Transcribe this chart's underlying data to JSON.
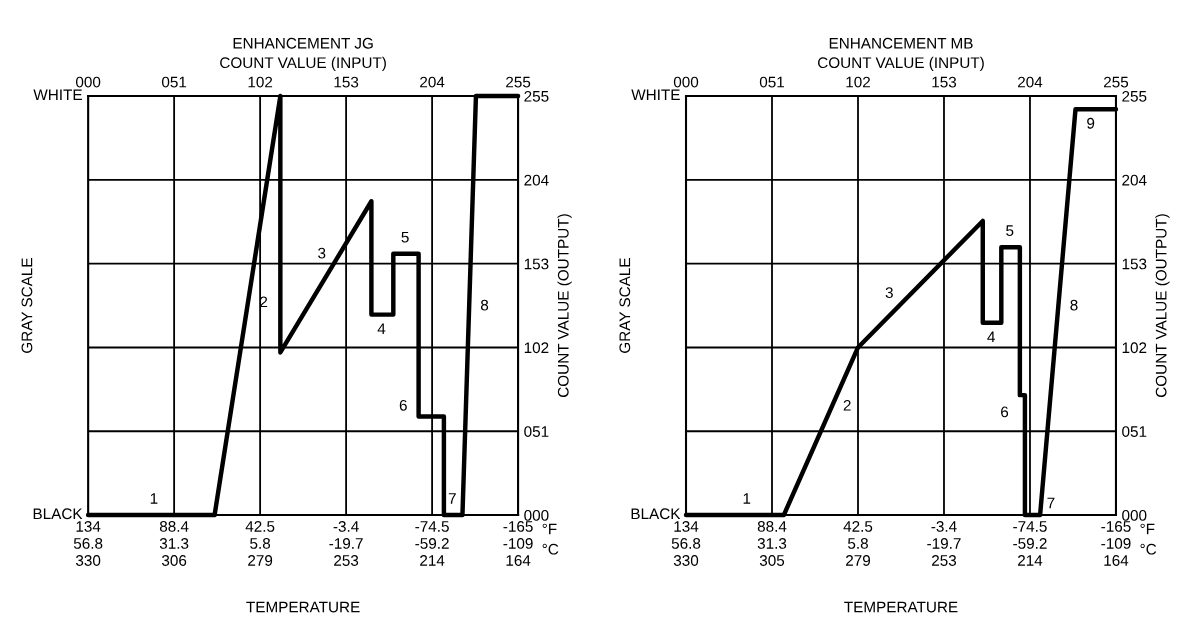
{
  "chart_data": [
    {
      "type": "line",
      "title": "ENHANCEMENT JG",
      "xlabel": "COUNT VALUE (INPUT)",
      "ylabel": "COUNT VALUE (OUTPUT)",
      "xlim": [
        0,
        255
      ],
      "ylim": [
        0,
        255
      ],
      "xticks": [
        {
          "value": 0,
          "label": "000"
        },
        {
          "value": 51,
          "label": "051"
        },
        {
          "value": 102,
          "label": "102"
        },
        {
          "value": 153,
          "label": "153"
        },
        {
          "value": 204,
          "label": "204"
        },
        {
          "value": 255,
          "label": "255"
        }
      ],
      "yticks": [
        {
          "value": 0,
          "label": "000"
        },
        {
          "value": 51,
          "label": "051"
        },
        {
          "value": 102,
          "label": "102"
        },
        {
          "value": 153,
          "label": "153"
        },
        {
          "value": 204,
          "label": "204"
        },
        {
          "value": 255,
          "label": "255"
        }
      ],
      "grid": true,
      "marker": "none",
      "line_style": "solid",
      "series": [
        {
          "color": "#000000",
          "x": [
            0,
            75,
            114,
            114,
            168,
            168,
            181,
            181,
            196,
            196,
            211,
            211,
            222,
            230,
            255
          ],
          "values": [
            0,
            0,
            255,
            99,
            191,
            122,
            122,
            159,
            159,
            60,
            60,
            0,
            0,
            255,
            255
          ]
        }
      ],
      "annotations": [
        "GRAY SCALE",
        "WHITE",
        "BLACK",
        "134\n56.8\n330",
        "88.4\n31.3\n306",
        "42.5\n5.8\n279",
        "-3.4\n-19.7\n253",
        "-74.5\n-59.2\n214",
        "-165\n-109\n164",
        "TEMPERATURE",
        "°F",
        "°C",
        {
          "text": "1",
          "x": 39,
          "y": 0
        },
        {
          "text": "2",
          "x": 95,
          "y": 129
        },
        {
          "text": "3",
          "x": 145,
          "y": 152
        },
        {
          "text": "4",
          "x": 174,
          "y": 122
        },
        {
          "text": "5",
          "x": 188,
          "y": 159
        },
        {
          "text": "6",
          "x": 196,
          "y": 66
        },
        {
          "text": "7",
          "x": 216,
          "y": 0
        },
        {
          "text": "8",
          "x": 226,
          "y": 127
        }
      ]
    },
    {
      "type": "line",
      "title": "ENHANCEMENT MB",
      "xlabel": "COUNT VALUE (INPUT)",
      "ylabel": "COUNT VALUE (OUTPUT)",
      "xlim": [
        0,
        255
      ],
      "ylim": [
        0,
        255
      ],
      "xticks": [
        {
          "value": 0,
          "label": "000"
        },
        {
          "value": 51,
          "label": "051"
        },
        {
          "value": 102,
          "label": "102"
        },
        {
          "value": 153,
          "label": "153"
        },
        {
          "value": 204,
          "label": "204"
        },
        {
          "value": 255,
          "label": "255"
        }
      ],
      "yticks": [
        {
          "value": 0,
          "label": "000"
        },
        {
          "value": 51,
          "label": "051"
        },
        {
          "value": 102,
          "label": "102"
        },
        {
          "value": 153,
          "label": "153"
        },
        {
          "value": 204,
          "label": "204"
        },
        {
          "value": 255,
          "label": "255"
        }
      ],
      "grid": true,
      "marker": "none",
      "line_style": "solid",
      "series": [
        {
          "color": "#000000",
          "x": [
            0,
            58,
            102,
            176,
            176,
            187,
            187,
            198,
            198,
            201,
            201,
            210,
            231,
            255
          ],
          "values": [
            0,
            0,
            102,
            179,
            117,
            117,
            163,
            163,
            73,
            73,
            0,
            0,
            247,
            247
          ]
        }
      ],
      "annotations": [
        "GRAY SCALE",
        "WHITE",
        "BLACK",
        "134\n56.8\n330",
        "88.4\n31.3\n305",
        "42.5\n5.8\n279",
        "-3.4\n-19.7\n253",
        "-74.5\n-59.2\n214",
        "-165\n-109\n164",
        "TEMPERATURE",
        "°F",
        "°C",
        {
          "text": "1",
          "x": 36,
          "y": 0
        },
        {
          "text": "2",
          "x": 86.5,
          "y": 66
        },
        {
          "text": "3",
          "x": 127,
          "y": 128
        },
        {
          "text": "4",
          "x": 181,
          "y": 117
        },
        {
          "text": "5",
          "x": 192,
          "y": 163
        },
        {
          "text": "6",
          "x": 198,
          "y": 62
        },
        {
          "text": "7",
          "x": 210,
          "y": 0
        },
        {
          "text": "8",
          "x": 221,
          "y": 127
        },
        {
          "text": "9",
          "x": 240,
          "y": 247
        }
      ]
    }
  ]
}
